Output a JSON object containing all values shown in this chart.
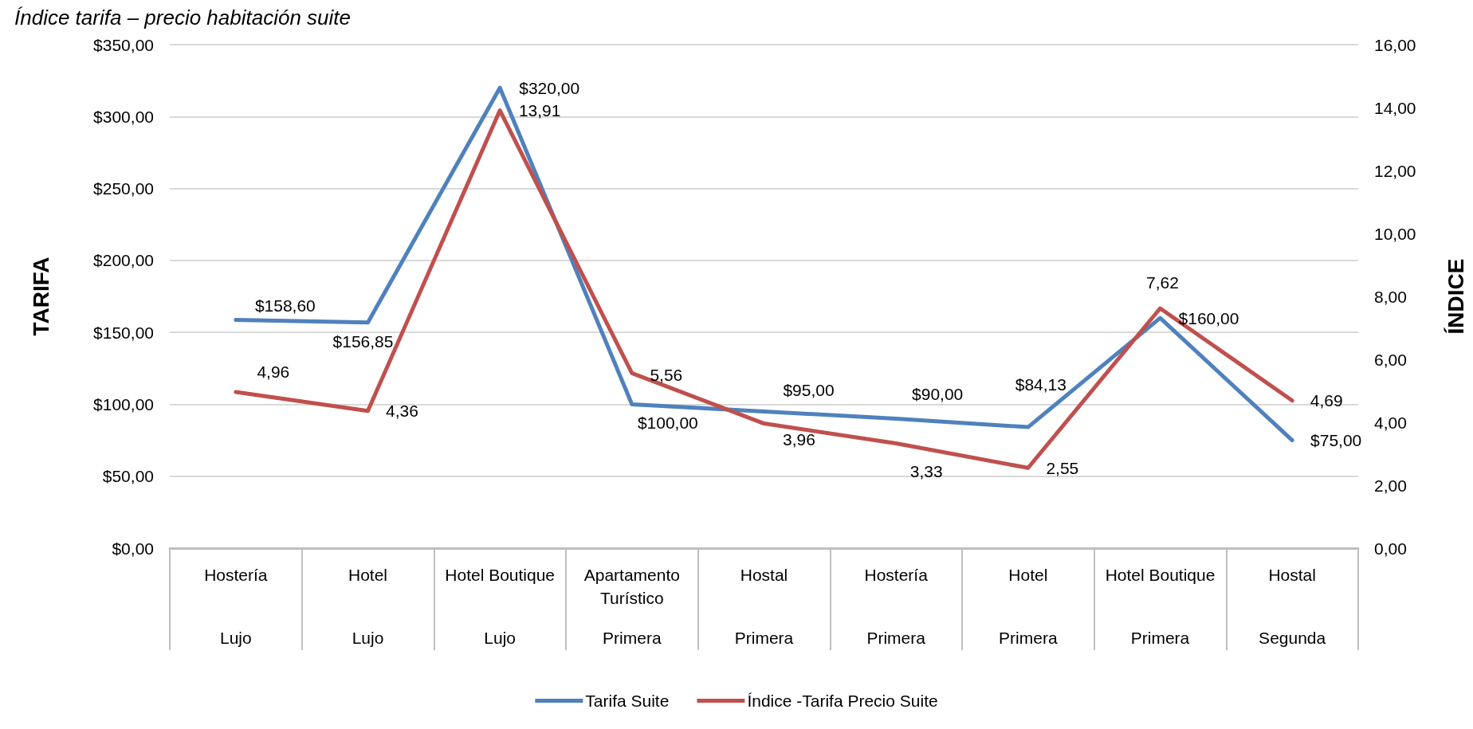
{
  "chart_data": {
    "type": "line",
    "title": "Índice tarifa – precio habitación suite",
    "categories": [
      "Hostería\nLujo",
      "Hotel\nLujo",
      "Hotel Boutique\nLujo",
      "Apartamento Turístico\nPrimera",
      "Hostal\nPrimera",
      "Hostería\nPrimera",
      "Hotel\nPrimera",
      "Hotel Boutique\nPrimera",
      "Hostal\nSegunda"
    ],
    "series": [
      {
        "name": "Tarifa Suite",
        "color": "#4f81bd",
        "values": [
          158.6,
          156.85,
          320,
          100,
          95,
          90,
          84.13,
          160,
          75
        ],
        "value_labels": [
          "$158,60",
          "$156,85",
          "$320,00",
          "$100,00",
          "$95,00",
          "$90,00",
          "$84,13",
          "$160,00",
          "$75,00"
        ]
      },
      {
        "name": "Índice -Tarifa Precio Suite",
        "color": "#c0504d",
        "axis": "y2",
        "values": [
          4.96,
          4.36,
          13.91,
          5.56,
          3.96,
          3.33,
          2.55,
          7.62,
          4.69
        ],
        "value_labels": [
          "4,96",
          "4,36",
          "13,91",
          "5,56",
          "3,96",
          "3,33",
          "2,55",
          "7,62",
          "4,69"
        ]
      }
    ],
    "ylabel": "TARIFA",
    "y2label": "ÍNDICE",
    "ylim": [
      0,
      350
    ],
    "yticks": [
      {
        "value": 0,
        "label": "$0,00"
      },
      {
        "value": 50,
        "label": "$50,00"
      },
      {
        "value": 100,
        "label": "$100,00"
      },
      {
        "value": 150,
        "label": "$150,00"
      },
      {
        "value": 200,
        "label": "$200,00"
      },
      {
        "value": 250,
        "label": "$250,00"
      },
      {
        "value": 300,
        "label": "$300,00"
      },
      {
        "value": 350,
        "label": "$350,00"
      }
    ],
    "y2lim": [
      0,
      16
    ],
    "y2ticks": [
      {
        "value": 0,
        "label": "0,00"
      },
      {
        "value": 2,
        "label": "2,00"
      },
      {
        "value": 4,
        "label": "4,00"
      },
      {
        "value": 6,
        "label": "6,00"
      },
      {
        "value": 8,
        "label": "8,00"
      },
      {
        "value": 10,
        "label": "10,00"
      },
      {
        "value": 12,
        "label": "12,00"
      },
      {
        "value": 14,
        "label": "14,00"
      },
      {
        "value": 16,
        "label": "16,00"
      }
    ],
    "grid": "y",
    "legend": "bottom",
    "marker": "none"
  }
}
